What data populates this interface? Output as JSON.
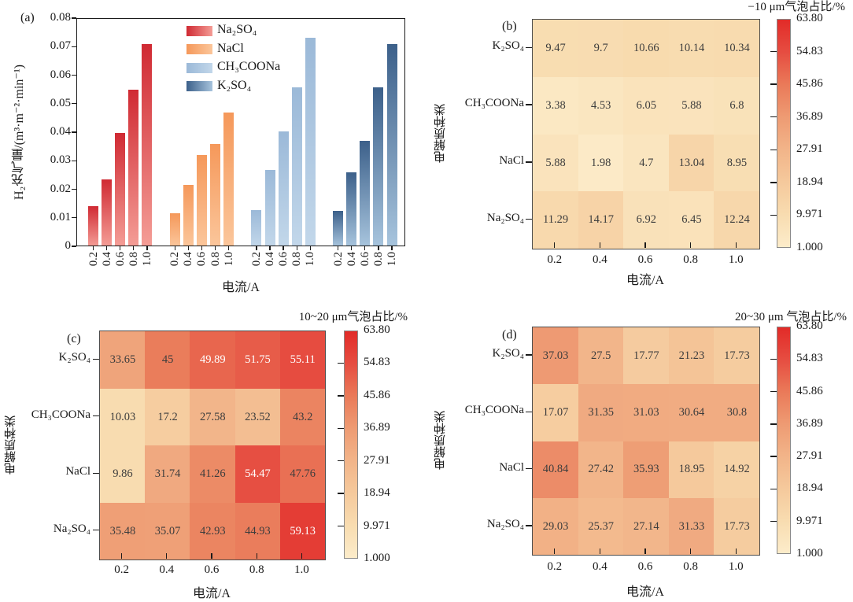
{
  "colors": {
    "axis": "#1a1a1a",
    "heatmap_border": "#4d4d4d",
    "cell_text_dark": "#3d3d3d",
    "cell_text_light": "#ffffff",
    "white_text_threshold": 49,
    "colormap_stops": [
      [
        1.0,
        "#fcecca"
      ],
      [
        9.971,
        "#f8dcb0"
      ],
      [
        18.94,
        "#f5c99c"
      ],
      [
        27.91,
        "#f2b489"
      ],
      [
        36.89,
        "#ee9b73"
      ],
      [
        45.86,
        "#ea7a59"
      ],
      [
        54.83,
        "#e64d41"
      ],
      [
        63.8,
        "#e22b28"
      ]
    ]
  },
  "chart_data": [
    {
      "id": "a",
      "type": "bar",
      "panel_label": "(a)",
      "xlabel": "电流/A",
      "ylabel": "H₂充气量/(m³·m⁻²·min⁻¹)",
      "categories": [
        "0.2",
        "0.4",
        "0.6",
        "0.8",
        "1.0"
      ],
      "ylim": [
        0,
        0.08
      ],
      "ytick_labels": [
        "0",
        "0.01",
        "0.02",
        "0.03",
        "0.04",
        "0.05",
        "0.06",
        "0.07",
        "0.08"
      ],
      "legend_position": "top-center",
      "series": [
        {
          "name": "Na₂SO₄",
          "color_top": "#d02a33",
          "color_bottom": "#f49d96",
          "values": [
            0.014,
            0.0235,
            0.0397,
            0.0548,
            0.071
          ]
        },
        {
          "name": "NaCl",
          "color_top": "#f5985a",
          "color_bottom": "#fbc69b",
          "values": [
            0.0115,
            0.0215,
            0.032,
            0.036,
            0.0468
          ]
        },
        {
          "name": "CH₃COONa",
          "color_top": "#9bb9d8",
          "color_bottom": "#c2d7ea",
          "values": [
            0.0128,
            0.0267,
            0.0402,
            0.0558,
            0.0732
          ]
        },
        {
          "name": "K₂SO₄",
          "color_top": "#3c608a",
          "color_bottom": "#a7c4dd",
          "values": [
            0.0125,
            0.026,
            0.037,
            0.0557,
            0.071
          ]
        }
      ]
    },
    {
      "id": "b",
      "type": "heatmap",
      "panel_label": "(b)",
      "title": "−10 μm气泡占比/%",
      "xlabel": "电流/A",
      "ylabel": "电解质种类",
      "x": [
        "0.2",
        "0.4",
        "0.6",
        "0.8",
        "1.0"
      ],
      "rows": [
        "K₂SO₄",
        "CH₃COONa",
        "NaCl",
        "Na₂SO₄"
      ],
      "values": [
        [
          9.47,
          9.7,
          10.66,
          10.14,
          10.34
        ],
        [
          3.38,
          4.53,
          6.05,
          5.88,
          6.8
        ],
        [
          5.88,
          1.98,
          4.7,
          13.04,
          8.95
        ],
        [
          11.29,
          14.17,
          6.92,
          6.45,
          12.24
        ]
      ],
      "labels": [
        [
          "9.47",
          "9.7",
          "10.66",
          "10.14",
          "10.34"
        ],
        [
          "3.38",
          "4.53",
          "6.05",
          "5.88",
          "6.8"
        ],
        [
          "5.88",
          "1.98",
          "4.7",
          "13.04",
          "8.95"
        ],
        [
          "11.29",
          "14.17",
          "6.92",
          "6.45",
          "12.24"
        ]
      ],
      "colorbar": {
        "min": 1.0,
        "max": 63.8,
        "tick_labels": [
          "63.80",
          "54.83",
          "45.86",
          "36.89",
          "27.91",
          "18.94",
          "9.971",
          "1.000"
        ]
      }
    },
    {
      "id": "c",
      "type": "heatmap",
      "panel_label": "(c)",
      "title": "10~20 μm气泡占比/%",
      "xlabel": "电流/A",
      "ylabel": "电解质种类",
      "x": [
        "0.2",
        "0.4",
        "0.6",
        "0.8",
        "1.0"
      ],
      "rows": [
        "K₂SO₄",
        "CH₃COONa",
        "NaCl",
        "Na₂SO₄"
      ],
      "values": [
        [
          33.65,
          45,
          49.89,
          51.75,
          55.11
        ],
        [
          10.03,
          17.2,
          27.58,
          23.52,
          43.2
        ],
        [
          9.86,
          31.74,
          41.26,
          54.47,
          47.76
        ],
        [
          35.48,
          35.07,
          42.93,
          44.93,
          59.13
        ]
      ],
      "labels": [
        [
          "33.65",
          "45",
          "49.89",
          "51.75",
          "55.11"
        ],
        [
          "10.03",
          "17.2",
          "27.58",
          "23.52",
          "43.2"
        ],
        [
          "9.86",
          "31.74",
          "41.26",
          "54.47",
          "47.76"
        ],
        [
          "35.48",
          "35.07",
          "42.93",
          "44.93",
          "59.13"
        ]
      ],
      "colorbar": {
        "min": 1.0,
        "max": 63.8,
        "tick_labels": [
          "63.80",
          "54.83",
          "45.86",
          "36.89",
          "27.91",
          "18.94",
          "9.971",
          "1.000"
        ]
      }
    },
    {
      "id": "d",
      "type": "heatmap",
      "panel_label": "(d)",
      "title": "20~30 μm 气泡占比/%",
      "xlabel": "电流/A",
      "ylabel": "电解质种类",
      "x": [
        "0.2",
        "0.4",
        "0.6",
        "0.8",
        "1.0"
      ],
      "rows": [
        "K₂SO₄",
        "CH₃COONa",
        "NaCl",
        "Na₂SO₄"
      ],
      "values": [
        [
          37.03,
          27.5,
          17.77,
          21.23,
          17.73
        ],
        [
          17.07,
          31.35,
          31.03,
          30.64,
          30.8
        ],
        [
          40.84,
          27.42,
          35.93,
          18.95,
          14.92
        ],
        [
          29.03,
          25.37,
          27.14,
          31.33,
          17.73
        ]
      ],
      "labels": [
        [
          "37.03",
          "27.5",
          "17.77",
          "21.23",
          "17.73"
        ],
        [
          "17.07",
          "31.35",
          "31.03",
          "30.64",
          "30.8"
        ],
        [
          "40.84",
          "27.42",
          "35.93",
          "18.95",
          "14.92"
        ],
        [
          "29.03",
          "25.37",
          "27.14",
          "31.33",
          "17.73"
        ]
      ],
      "colorbar": {
        "min": 1.0,
        "max": 63.8,
        "tick_labels": [
          "63.80",
          "54.83",
          "45.86",
          "36.89",
          "27.91",
          "18.94",
          "9.971",
          "1.000"
        ]
      }
    }
  ]
}
